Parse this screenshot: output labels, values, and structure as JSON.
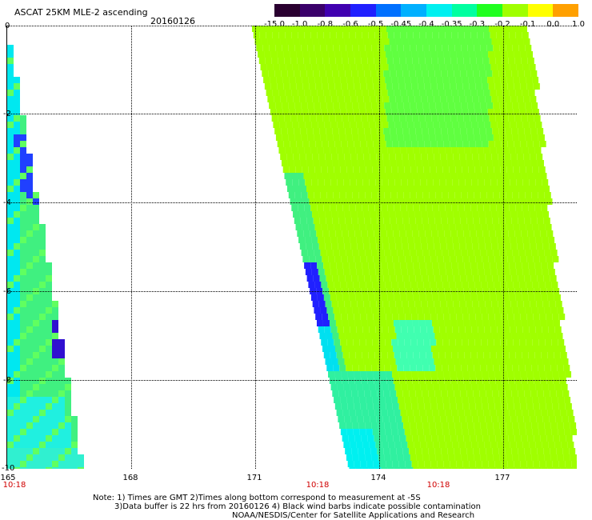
{
  "header": {
    "title": "ASCAT 25KM MLE-2 ascending",
    "date": "20160126"
  },
  "colorbar": {
    "labels": [
      "-15.0",
      "-1.0",
      "-0.8",
      "-0.6",
      "-0.5",
      "-0.45",
      "-0.4",
      "-0.35",
      "-0.3",
      "-0.2",
      "-0.1",
      "0.0",
      "1.0"
    ],
    "colors": [
      "#2a0030",
      "#3a006a",
      "#4000b0",
      "#2020ff",
      "#0070ff",
      "#00b0ff",
      "#00f0f0",
      "#00ffa0",
      "#20ff20",
      "#a0ff00",
      "#ffff00",
      "#ffa000",
      "#ff2000"
    ]
  },
  "axes": {
    "y_ticks": [
      "0",
      "-2",
      "-4",
      "-6",
      "-8",
      "-10"
    ],
    "x_ticks": [
      "165",
      "168",
      "171",
      "174",
      "177"
    ],
    "time_labels": [
      "10:18",
      "10:18",
      "10:18"
    ]
  },
  "notes": {
    "line1": "Note: 1) Times are GMT 2)Times along bottom correspond to measurement at -5S",
    "line2": "3)Data buffer is 22 hrs from 20160126 4) Black wind barbs indicate possible contamination",
    "line3": "NOAA/NESDIS/Center for Satellite Applications and Research"
  }
}
